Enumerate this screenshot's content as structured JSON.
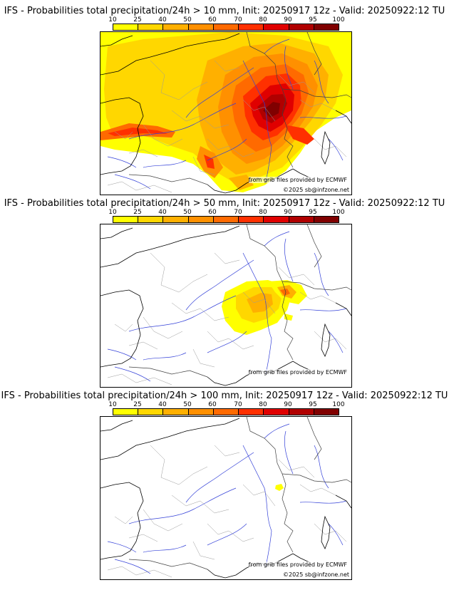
{
  "colorbar": {
    "ticks": [
      "10",
      "25",
      "40",
      "50",
      "60",
      "70",
      "80",
      "90",
      "95",
      "100"
    ],
    "colors": [
      "#ffff00",
      "#ffd700",
      "#ffb000",
      "#ff9000",
      "#ff6a00",
      "#ff3000",
      "#e00000",
      "#b00000",
      "#800000"
    ]
  },
  "credits": {
    "source": "from grib files provided by ECMWF",
    "copyright": "©2025 sb@infzone.net"
  },
  "panels": [
    {
      "title": "IFS - Probabilities total precipitation/24h > 10 mm, Init: 20250917 12z - Valid: 20250922:12 TU",
      "threshold_mm": 10
    },
    {
      "title": "IFS - Probabilities total precipitation/24h > 50 mm, Init: 20250917 12z - Valid: 20250922:12 TU",
      "threshold_mm": 50
    },
    {
      "title": "IFS - Probabilities total precipitation/24h > 100 mm, Init: 20250917 12z - Valid: 20250922:12 TU",
      "threshold_mm": 100
    }
  ]
}
